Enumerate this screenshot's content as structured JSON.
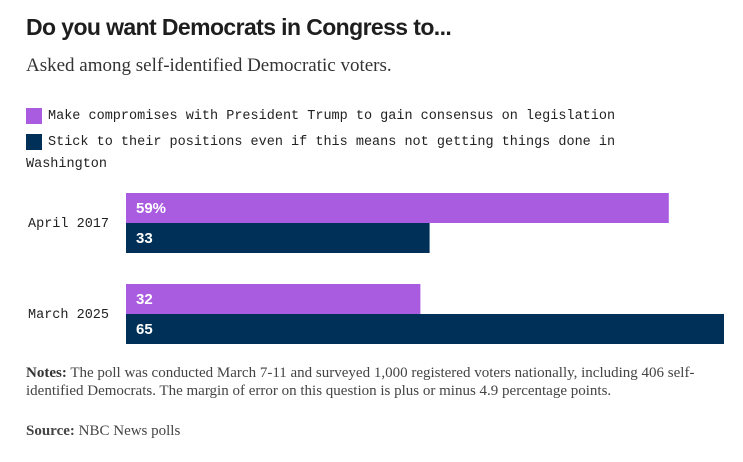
{
  "chart_data": {
    "type": "bar",
    "orientation": "horizontal",
    "title": "Do you want Democrats in Congress to...",
    "subtitle": "Asked among self-identified Democratic voters.",
    "categories": [
      "April 2017",
      "March 2025"
    ],
    "series": [
      {
        "name": "Make compromises with President Trump to gain consensus on legislation",
        "color": "#a95ce0",
        "values": [
          59,
          32
        ],
        "labels": [
          "59%",
          "32"
        ]
      },
      {
        "name": "Stick to their positions even if this means not getting things done in Washington",
        "color": "#003057",
        "values": [
          33,
          65
        ],
        "labels": [
          "33",
          "65"
        ]
      }
    ],
    "xlim": [
      0,
      65
    ],
    "grid": false,
    "legend_position": "top-left"
  },
  "notes": {
    "label": "Notes:",
    "text": "The poll was conducted March 7-11 and surveyed 1,000 registered voters nationally, including 406 self-identified Democrats. The margin of error on this question is plus or minus 4.9 percentage points."
  },
  "source": {
    "label": "Source:",
    "text": "NBC News polls"
  }
}
